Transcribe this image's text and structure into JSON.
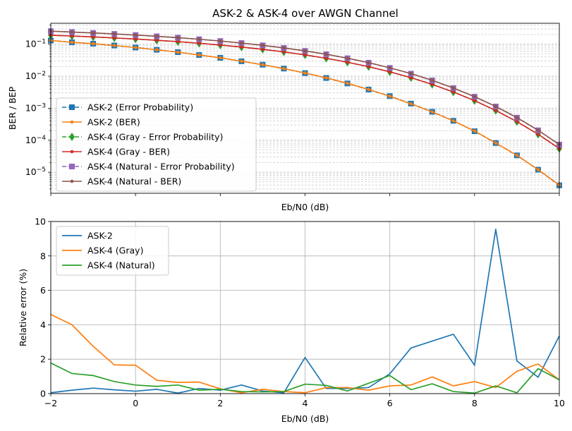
{
  "figure": {
    "title": "ASK-2 & ASK-4 over AWGN Channel"
  },
  "chart_data": [
    {
      "type": "line",
      "title": "ASK-2 & ASK-4 over AWGN Channel",
      "xlabel": "Eb/N0 (dB)",
      "ylabel": "BER / BEP",
      "yscale": "log",
      "xlim": [
        -2,
        10
      ],
      "ylim": [
        2.2e-06,
        0.45
      ],
      "ytick_labels": [
        "10^-5",
        "10^-4",
        "10^-3",
        "10^-2",
        "10^-1"
      ],
      "grid": "minor log gridlines, dashed",
      "legend": "lower-left",
      "x": [
        -2,
        -1.5,
        -1,
        -0.5,
        0,
        0.5,
        1,
        1.5,
        2,
        2.5,
        3,
        3.5,
        4,
        4.5,
        5,
        5.5,
        6,
        6.5,
        7,
        7.5,
        8,
        8.5,
        9,
        9.5,
        10
      ],
      "series": [
        {
          "name": "ASK-2 (Error Probability)",
          "color": "#1f77b4",
          "linestyle": "dashed",
          "marker": "square",
          "values": [
            0.1306,
            0.1146,
            0.1038,
            0.0912,
            0.0786,
            0.0669,
            0.0563,
            0.046,
            0.0375,
            0.0293,
            0.0229,
            0.0173,
            0.0125,
            0.00881,
            0.00595,
            0.00383,
            0.00239,
            0.00139,
            0.000773,
            0.000404,
            0.000191,
            8.16e-05,
            3.36e-05,
            1.2e-05,
            3.9e-06
          ]
        },
        {
          "name": "ASK-2 (BER)",
          "color": "#ff7f0e",
          "linestyle": "solid",
          "marker": "dot",
          "values": [
            0.1306,
            0.1145,
            0.1035,
            0.091,
            0.0787,
            0.0671,
            0.0563,
            0.0461,
            0.0375,
            0.0294,
            0.0228,
            0.0172,
            0.0126,
            0.0089,
            0.00601,
            0.00387,
            0.00236,
            0.00137,
            0.000765,
            0.000401,
            0.000194,
            8.2e-05,
            3.37e-05,
            1.21e-05,
            4e-06
          ]
        },
        {
          "name": "ASK-4 (Gray - Error Probability)",
          "color": "#2ca02c",
          "linestyle": "dashed",
          "marker": "diamond",
          "values": [
            0.1907,
            0.1797,
            0.1684,
            0.1567,
            0.1446,
            0.1323,
            0.1196,
            0.1069,
            0.0941,
            0.0814,
            0.0691,
            0.0573,
            0.0463,
            0.0362,
            0.0273,
            0.0198,
            0.0137,
            0.00897,
            0.00554,
            0.0032,
            0.00172,
            0.000849,
            0.00038,
            0.000153,
            5.48e-05
          ]
        },
        {
          "name": "ASK-4 (Gray - BER)",
          "color": "#d62728",
          "linestyle": "solid",
          "marker": "dot",
          "values": [
            0.1908,
            0.1798,
            0.1685,
            0.1568,
            0.1447,
            0.1324,
            0.1197,
            0.107,
            0.0942,
            0.0815,
            0.0692,
            0.0574,
            0.0464,
            0.0363,
            0.0274,
            0.0198,
            0.0137,
            0.00898,
            0.00555,
            0.00321,
            0.00173,
            0.000852,
            0.000381,
            0.000154,
            5.5e-05
          ]
        },
        {
          "name": "ASK-4 (Natural - Error Probability)",
          "color": "#9467bd",
          "linestyle": "dashed",
          "marker": "square",
          "values": [
            0.2543,
            0.2396,
            0.2245,
            0.2089,
            0.1928,
            0.1764,
            0.1595,
            0.1425,
            0.1254,
            0.1085,
            0.0921,
            0.0764,
            0.0617,
            0.0483,
            0.0364,
            0.0264,
            0.0182,
            0.012,
            0.00739,
            0.00427,
            0.00229,
            0.00113,
            0.000507,
            0.000204,
            7.31e-05
          ]
        },
        {
          "name": "ASK-4 (Natural - BER)",
          "color": "#8c564b",
          "linestyle": "solid",
          "marker": "dot",
          "values": [
            0.2545,
            0.2398,
            0.2247,
            0.2091,
            0.193,
            0.1766,
            0.1597,
            0.1427,
            0.1256,
            0.1087,
            0.0923,
            0.0766,
            0.0619,
            0.0485,
            0.0366,
            0.0265,
            0.0183,
            0.0121,
            0.00742,
            0.00429,
            0.0023,
            0.00114,
            0.000509,
            0.000205,
            7.35e-05
          ]
        }
      ]
    },
    {
      "type": "line",
      "xlabel": "Eb/N0 (dB)",
      "ylabel": "Relative error (%)",
      "xlim": [
        -2,
        10
      ],
      "ylim": [
        0,
        10
      ],
      "xticks": [
        -2,
        0,
        2,
        4,
        6,
        8,
        10
      ],
      "yticks": [
        0,
        2,
        4,
        6,
        8,
        10
      ],
      "grid": true,
      "legend": "upper-left",
      "x": [
        -2,
        -1.5,
        -1,
        -0.5,
        0,
        0.5,
        1,
        1.5,
        2,
        2.5,
        3,
        3.5,
        4,
        4.5,
        5,
        5.5,
        6,
        6.5,
        7,
        7.5,
        8,
        8.5,
        9,
        9.5,
        10
      ],
      "series": [
        {
          "name": "ASK-2",
          "color": "#1f77b4",
          "values": [
            0.05,
            0.2,
            0.32,
            0.22,
            0.14,
            0.25,
            0.03,
            0.3,
            0.2,
            0.5,
            0.15,
            0.05,
            2.1,
            0.3,
            0.3,
            0.35,
            1.15,
            2.65,
            3.05,
            3.45,
            1.65,
            9.55,
            1.9,
            0.95,
            3.35
          ]
        },
        {
          "name": "ASK-4 (Gray)",
          "color": "#ff7f0e",
          "values": [
            4.6,
            4.0,
            2.75,
            1.67,
            1.65,
            0.78,
            0.65,
            0.67,
            0.28,
            0.05,
            0.25,
            0.12,
            0.05,
            0.35,
            0.35,
            0.2,
            0.45,
            0.5,
            0.97,
            0.45,
            0.7,
            0.35,
            1.3,
            1.72,
            0.8
          ]
        },
        {
          "name": "ASK-4 (Natural)",
          "color": "#2ca02c",
          "values": [
            1.78,
            1.17,
            1.05,
            0.7,
            0.5,
            0.42,
            0.5,
            0.2,
            0.25,
            0.12,
            0.1,
            0.12,
            0.55,
            0.48,
            0.15,
            0.6,
            1.05,
            0.23,
            0.57,
            0.12,
            0.03,
            0.45,
            0.05,
            1.45,
            0.8
          ]
        }
      ]
    }
  ]
}
